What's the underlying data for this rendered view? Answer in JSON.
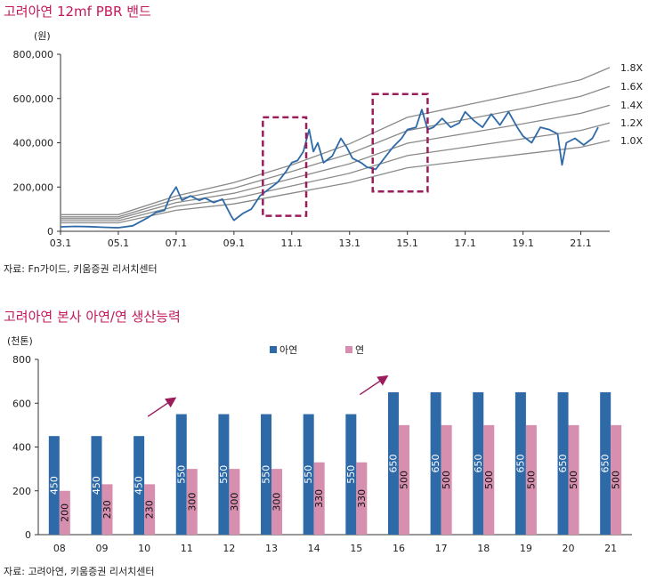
{
  "top": {
    "title": "고려아연 12mf PBR 밴드",
    "source": "자료: Fn가이드, 키움증권 리서치센터"
  },
  "bottom": {
    "title": "고려아연 본사 아연/연 생산능력",
    "source": "자료: 고려아연, 키움증권 리서치센터"
  },
  "colors": {
    "price": "#2e6aa8",
    "band": "#8a8a8a",
    "highlight": "#9b1c5a",
    "zinc": "#2e6aa8",
    "lead": "#d68fae",
    "title": "#c2185b"
  },
  "chart_data": [
    {
      "type": "line",
      "ylabel": "(원)",
      "ylim": [
        0,
        800000
      ],
      "yticks": [
        0,
        200000,
        400000,
        600000,
        800000
      ],
      "ytick_labels": [
        "0",
        "200,000",
        "400,000",
        "600,000",
        "800,000"
      ],
      "xlim": [
        2003.0,
        2022.0
      ],
      "xticks": [
        2003.0,
        2005.0,
        2007.0,
        2009.0,
        2011.0,
        2013.0,
        2015.0,
        2017.0,
        2019.0,
        2021.0
      ],
      "xtick_labels": [
        "03.1",
        "05.1",
        "07.1",
        "09.1",
        "11.1",
        "13.1",
        "15.1",
        "17.1",
        "19.1",
        "21.1"
      ],
      "bands": [
        {
          "name": "1.8X",
          "points": [
            [
              2003.0,
              75000
            ],
            [
              2005.0,
              75000
            ],
            [
              2007.0,
              160000
            ],
            [
              2009.0,
              220000
            ],
            [
              2011.0,
              300000
            ],
            [
              2013.0,
              395000
            ],
            [
              2015.0,
              515000
            ],
            [
              2017.0,
              570000
            ],
            [
              2019.0,
              625000
            ],
            [
              2021.0,
              685000
            ],
            [
              2022.0,
              740000
            ]
          ]
        },
        {
          "name": "1.6X",
          "points": [
            [
              2003.0,
              65000
            ],
            [
              2005.0,
              65000
            ],
            [
              2007.0,
              145000
            ],
            [
              2009.0,
              195000
            ],
            [
              2011.0,
              270000
            ],
            [
              2013.0,
              350000
            ],
            [
              2015.0,
              455000
            ],
            [
              2017.0,
              505000
            ],
            [
              2019.0,
              555000
            ],
            [
              2021.0,
              610000
            ],
            [
              2022.0,
              655000
            ]
          ]
        },
        {
          "name": "1.4X",
          "points": [
            [
              2003.0,
              57000
            ],
            [
              2005.0,
              57000
            ],
            [
              2007.0,
              130000
            ],
            [
              2009.0,
              172000
            ],
            [
              2011.0,
              238000
            ],
            [
              2013.0,
              305000
            ],
            [
              2015.0,
              398000
            ],
            [
              2017.0,
              442000
            ],
            [
              2019.0,
              486000
            ],
            [
              2021.0,
              533000
            ],
            [
              2022.0,
              570000
            ]
          ]
        },
        {
          "name": "1.2X",
          "points": [
            [
              2003.0,
              48000
            ],
            [
              2005.0,
              48000
            ],
            [
              2007.0,
              113000
            ],
            [
              2009.0,
              148000
            ],
            [
              2011.0,
              205000
            ],
            [
              2013.0,
              262000
            ],
            [
              2015.0,
              342000
            ],
            [
              2017.0,
              380000
            ],
            [
              2019.0,
              418000
            ],
            [
              2021.0,
              456000
            ],
            [
              2022.0,
              490000
            ]
          ]
        },
        {
          "name": "1.0X",
          "points": [
            [
              2003.0,
              38000
            ],
            [
              2005.0,
              38000
            ],
            [
              2007.0,
              95000
            ],
            [
              2009.0,
              124000
            ],
            [
              2011.0,
              172000
            ],
            [
              2013.0,
              220000
            ],
            [
              2015.0,
              287000
            ],
            [
              2017.0,
              318000
            ],
            [
              2019.0,
              349000
            ],
            [
              2021.0,
              380000
            ],
            [
              2022.0,
              410000
            ]
          ]
        }
      ],
      "price": {
        "name": "",
        "points": [
          [
            2003.0,
            20000
          ],
          [
            2003.5,
            22000
          ],
          [
            2004.0,
            21000
          ],
          [
            2004.5,
            18000
          ],
          [
            2005.0,
            16000
          ],
          [
            2005.5,
            25000
          ],
          [
            2006.0,
            60000
          ],
          [
            2006.3,
            85000
          ],
          [
            2006.6,
            95000
          ],
          [
            2006.8,
            160000
          ],
          [
            2007.0,
            200000
          ],
          [
            2007.2,
            140000
          ],
          [
            2007.5,
            160000
          ],
          [
            2007.8,
            140000
          ],
          [
            2008.0,
            150000
          ],
          [
            2008.3,
            130000
          ],
          [
            2008.6,
            145000
          ],
          [
            2008.9,
            70000
          ],
          [
            2009.0,
            50000
          ],
          [
            2009.3,
            80000
          ],
          [
            2009.6,
            100000
          ],
          [
            2009.9,
            160000
          ],
          [
            2010.2,
            190000
          ],
          [
            2010.5,
            220000
          ],
          [
            2010.8,
            270000
          ],
          [
            2011.0,
            310000
          ],
          [
            2011.2,
            320000
          ],
          [
            2011.4,
            360000
          ],
          [
            2011.6,
            460000
          ],
          [
            2011.75,
            360000
          ],
          [
            2011.9,
            400000
          ],
          [
            2012.1,
            310000
          ],
          [
            2012.4,
            340000
          ],
          [
            2012.7,
            420000
          ],
          [
            2012.9,
            380000
          ],
          [
            2013.1,
            330000
          ],
          [
            2013.4,
            310000
          ],
          [
            2013.6,
            290000
          ],
          [
            2013.9,
            280000
          ],
          [
            2014.2,
            330000
          ],
          [
            2014.5,
            380000
          ],
          [
            2014.8,
            420000
          ],
          [
            2015.0,
            460000
          ],
          [
            2015.3,
            470000
          ],
          [
            2015.5,
            550000
          ],
          [
            2015.7,
            460000
          ],
          [
            2015.9,
            470000
          ],
          [
            2016.2,
            510000
          ],
          [
            2016.5,
            470000
          ],
          [
            2016.8,
            490000
          ],
          [
            2017.0,
            540000
          ],
          [
            2017.3,
            500000
          ],
          [
            2017.6,
            470000
          ],
          [
            2017.9,
            530000
          ],
          [
            2018.2,
            480000
          ],
          [
            2018.5,
            540000
          ],
          [
            2018.8,
            470000
          ],
          [
            2019.0,
            430000
          ],
          [
            2019.3,
            400000
          ],
          [
            2019.6,
            470000
          ],
          [
            2019.9,
            460000
          ],
          [
            2020.2,
            440000
          ],
          [
            2020.35,
            300000
          ],
          [
            2020.5,
            400000
          ],
          [
            2020.8,
            420000
          ],
          [
            2021.1,
            390000
          ],
          [
            2021.4,
            420000
          ],
          [
            2021.6,
            470000
          ]
        ]
      },
      "highlights": [
        {
          "x": [
            2010.0,
            2011.5
          ],
          "y": [
            70000,
            515000
          ]
        },
        {
          "x": [
            2013.8,
            2015.7
          ],
          "y": [
            180000,
            620000
          ]
        }
      ]
    },
    {
      "type": "bar",
      "ylabel": "(천톤)",
      "ylim": [
        0,
        800
      ],
      "yticks": [
        0,
        200,
        400,
        600,
        800
      ],
      "categories": [
        "08",
        "09",
        "10",
        "11",
        "12",
        "13",
        "14",
        "15",
        "16",
        "17",
        "18",
        "19",
        "20",
        "21"
      ],
      "series": [
        {
          "name": "아연",
          "values": [
            450,
            450,
            450,
            550,
            550,
            550,
            550,
            550,
            650,
            650,
            650,
            650,
            650,
            650
          ]
        },
        {
          "name": "연",
          "values": [
            200,
            230,
            230,
            300,
            300,
            300,
            330,
            330,
            500,
            500,
            500,
            500,
            500,
            500
          ]
        }
      ],
      "legend": "top",
      "arrows": [
        {
          "from_category": "10",
          "to_category": "11"
        },
        {
          "from_category": "15",
          "to_category": "16"
        }
      ]
    }
  ]
}
